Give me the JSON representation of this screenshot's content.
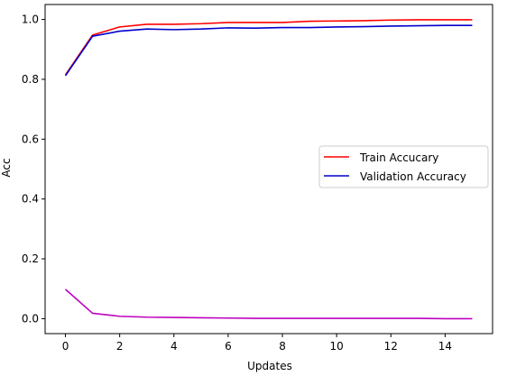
{
  "chart_data": {
    "type": "line",
    "title": "",
    "xlabel": "Updates",
    "ylabel": "Acc",
    "xlim": [
      -0.75,
      15.75
    ],
    "ylim": [
      -0.05,
      1.05
    ],
    "xticks": [
      0,
      2,
      4,
      6,
      8,
      10,
      12,
      14
    ],
    "yticks": [
      0.0,
      0.2,
      0.4,
      0.6,
      0.8,
      1.0
    ],
    "ytick_labels": [
      "0.0",
      "0.2",
      "0.4",
      "0.6",
      "0.8",
      "1.0"
    ],
    "grid": false,
    "legend": {
      "placement": "center-right",
      "entries": [
        "Train Accucary",
        "Validation Accuracy"
      ]
    },
    "x": [
      0,
      1,
      2,
      3,
      4,
      5,
      6,
      7,
      8,
      9,
      10,
      11,
      12,
      13,
      14,
      15
    ],
    "series": [
      {
        "name": "Train Accucary",
        "color": "#ff0000",
        "values": [
          0.815,
          0.948,
          0.975,
          0.984,
          0.984,
          0.986,
          0.99,
          0.99,
          0.99,
          0.994,
          0.995,
          0.996,
          0.998,
          0.999,
          0.999,
          0.999
        ]
      },
      {
        "name": "Validation Accuracy",
        "color": "#0000cc",
        "values": [
          0.812,
          0.944,
          0.961,
          0.968,
          0.966,
          0.968,
          0.972,
          0.971,
          0.973,
          0.973,
          0.975,
          0.976,
          0.978,
          0.979,
          0.98,
          0.98
        ]
      },
      {
        "color": "#bf00bf",
        "values": [
          0.098,
          0.018,
          0.008,
          0.005,
          0.004,
          0.003,
          0.002,
          0.001,
          0.001,
          0.001,
          0.001,
          0.001,
          0.001,
          0.001,
          0.0,
          0.0
        ]
      }
    ]
  }
}
